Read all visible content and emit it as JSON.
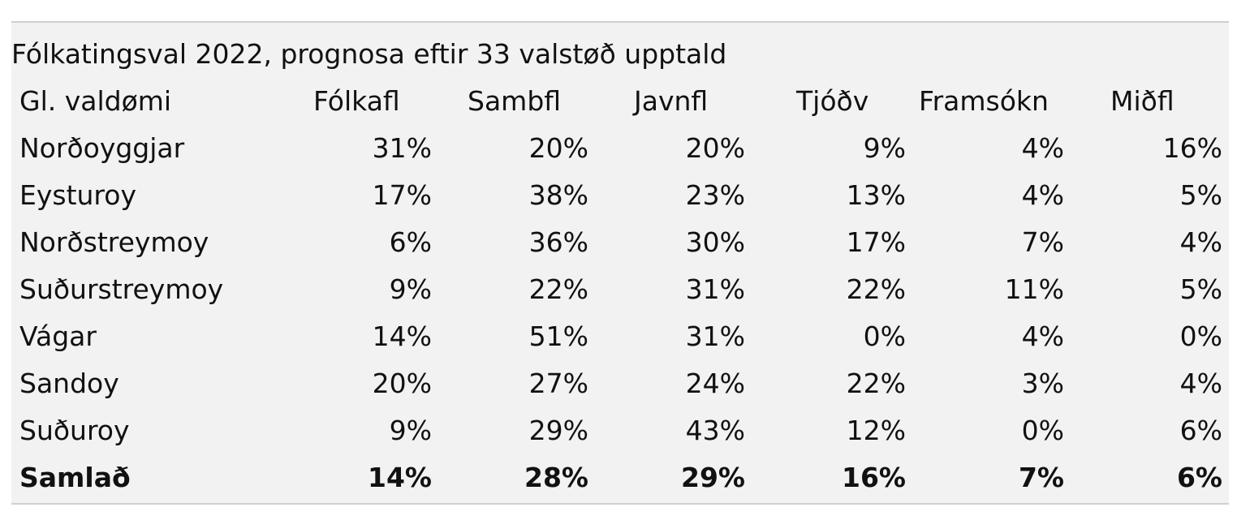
{
  "table": {
    "title": "Fólkatingsval 2022, prognosa eftir 33 valstøð upptald",
    "header": [
      "Gl. valdømi",
      "Fólkafl",
      "Sambfl",
      "Javnfl",
      "Tjóðv",
      "Framsókn",
      "Miðfl"
    ],
    "rows": [
      [
        "Norðoyggjar",
        "31%",
        "20%",
        "20%",
        "9%",
        "4%",
        "16%"
      ],
      [
        "Eysturoy",
        "17%",
        "38%",
        "23%",
        "13%",
        "4%",
        "5%"
      ],
      [
        "Norðstreymoy",
        "6%",
        "36%",
        "30%",
        "17%",
        "7%",
        "4%"
      ],
      [
        "Suðurstreymoy",
        "9%",
        "22%",
        "31%",
        "22%",
        "11%",
        "5%"
      ],
      [
        "Vágar",
        "14%",
        "51%",
        "31%",
        "0%",
        "4%",
        "0%"
      ],
      [
        "Sandoy",
        "20%",
        "27%",
        "24%",
        "22%",
        "3%",
        "4%"
      ],
      [
        "Suðuroy",
        "9%",
        "29%",
        "43%",
        "12%",
        "0%",
        "6%"
      ]
    ],
    "total": [
      "Samlað",
      "14%",
      "28%",
      "29%",
      "16%",
      "7%",
      "6%"
    ]
  }
}
